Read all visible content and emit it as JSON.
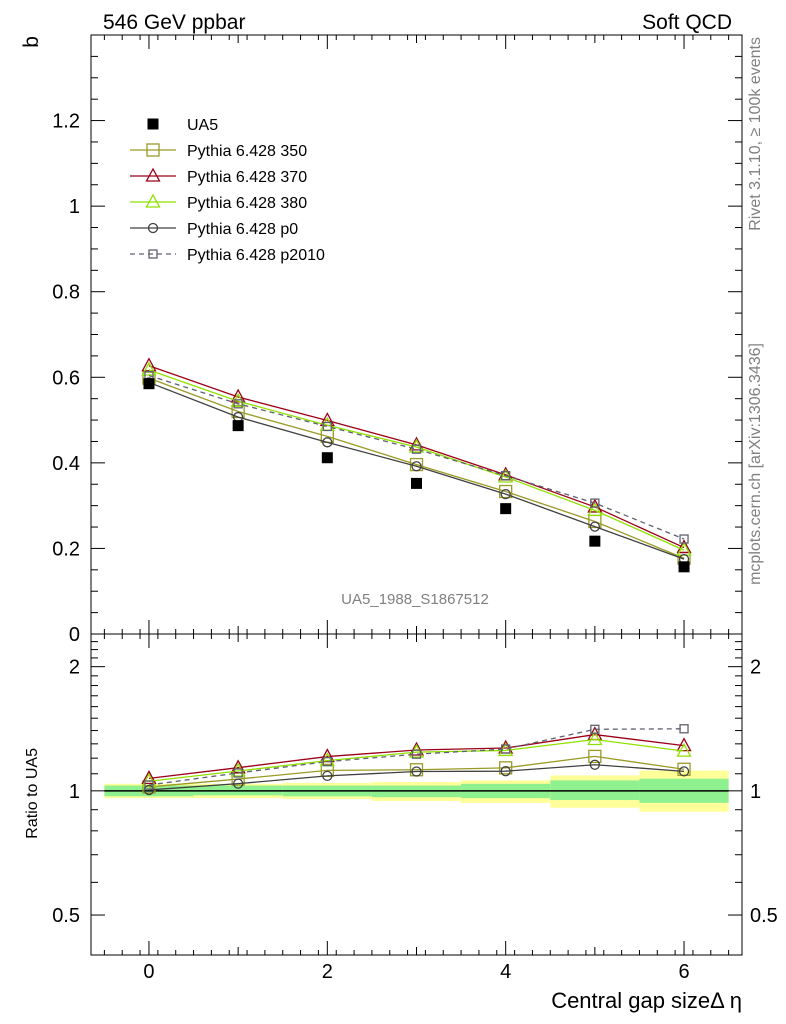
{
  "header": {
    "left_title": "546 GeV ppbar",
    "right_title": "Soft QCD"
  },
  "side_text": {
    "rivet": "Rivet 3.1.10, ≥ 100k events",
    "mcplots": "mcplots.cern.ch [arXiv:1306.3436]"
  },
  "watermark": "UA5_1988_S1867512",
  "chart_data": [
    {
      "type": "line",
      "panel": "main",
      "ylabel": "b",
      "xlabel": "Central gap sizeΔ η",
      "xlim": [
        -0.65,
        6.65
      ],
      "ylim": [
        0,
        1.4
      ],
      "y_ticks": [
        "0",
        "0.2",
        "0.4",
        "0.6",
        "0.8",
        "1",
        "1.2"
      ],
      "x_ticks": [
        "0",
        "2",
        "4",
        "6"
      ],
      "x": [
        0,
        1,
        2,
        3,
        4,
        5,
        6
      ],
      "data": {
        "name": "UA5",
        "values": [
          0.585,
          0.487,
          0.412,
          0.352,
          0.293,
          0.217,
          0.157
        ],
        "color": "#000000"
      },
      "series": [
        {
          "name": "Pythia 6.428 350",
          "color": "#9a9a25",
          "marker": "square-open",
          "dash": "solid",
          "values": [
            0.598,
            0.52,
            0.462,
            0.396,
            0.333,
            0.263,
            0.177
          ]
        },
        {
          "name": "Pythia 6.428 370",
          "color": "#9b0018",
          "marker": "triangle-open",
          "dash": "solid",
          "values": [
            0.627,
            0.554,
            0.499,
            0.442,
            0.372,
            0.297,
            0.202
          ]
        },
        {
          "name": "Pythia 6.428 380",
          "color": "#8fe000",
          "marker": "triangle-open",
          "dash": "solid",
          "values": [
            0.617,
            0.544,
            0.488,
            0.437,
            0.367,
            0.289,
            0.196
          ]
        },
        {
          "name": "Pythia 6.428 p0",
          "color": "#404040",
          "marker": "circle-open",
          "dash": "solid",
          "values": [
            0.588,
            0.507,
            0.448,
            0.392,
            0.327,
            0.251,
            0.175
          ]
        },
        {
          "name": "Pythia 6.428 p2010",
          "color": "#606070",
          "marker": "square-open-small",
          "dash": "dashed",
          "values": [
            0.604,
            0.538,
            0.485,
            0.432,
            0.37,
            0.306,
            0.222
          ]
        }
      ]
    },
    {
      "type": "line",
      "panel": "ratio",
      "ylabel": "Ratio to UA5",
      "xlabel": "Central gap sizeΔ η",
      "xlim": [
        -0.65,
        6.65
      ],
      "ylim": [
        0.4,
        2.4
      ],
      "y_scale": "log",
      "y_ticks": [
        "0.5",
        "1",
        "2"
      ],
      "x_ticks": [
        "0",
        "2",
        "4",
        "6"
      ],
      "x": [
        0,
        1,
        2,
        3,
        4,
        5,
        6
      ],
      "uncertainty_bands": {
        "inner_color": "#8ff08f",
        "outer_color": "#ffff99",
        "bins": [
          {
            "x": 0,
            "inner": [
              0.97,
              1.03
            ],
            "outer": [
              0.96,
              1.04
            ]
          },
          {
            "x": 1,
            "inner": [
              0.975,
              1.03
            ],
            "outer": [
              0.96,
              1.04
            ]
          },
          {
            "x": 2,
            "inner": [
              0.97,
              1.03
            ],
            "outer": [
              0.955,
              1.045
            ]
          },
          {
            "x": 3,
            "inner": [
              0.965,
              1.03
            ],
            "outer": [
              0.945,
              1.05
            ]
          },
          {
            "x": 4,
            "inner": [
              0.96,
              1.04
            ],
            "outer": [
              0.935,
              1.06
            ]
          },
          {
            "x": 5,
            "inner": [
              0.95,
              1.06
            ],
            "outer": [
              0.91,
              1.09
            ]
          },
          {
            "x": 6,
            "inner": [
              0.935,
              1.07
            ],
            "outer": [
              0.89,
              1.12
            ]
          }
        ]
      },
      "series": [
        {
          "name": "Pythia 6.428 350",
          "values": [
            1.022,
            1.068,
            1.121,
            1.125,
            1.137,
            1.212,
            1.128
          ]
        },
        {
          "name": "Pythia 6.428 370",
          "values": [
            1.072,
            1.138,
            1.211,
            1.256,
            1.27,
            1.369,
            1.287
          ]
        },
        {
          "name": "Pythia 6.428 380",
          "values": [
            1.055,
            1.117,
            1.184,
            1.241,
            1.253,
            1.332,
            1.248
          ]
        },
        {
          "name": "Pythia 6.428 p0",
          "values": [
            1.005,
            1.041,
            1.087,
            1.114,
            1.116,
            1.157,
            1.115
          ]
        },
        {
          "name": "Pythia 6.428 p2010",
          "values": [
            1.033,
            1.105,
            1.177,
            1.227,
            1.263,
            1.41,
            1.414
          ]
        }
      ]
    }
  ]
}
